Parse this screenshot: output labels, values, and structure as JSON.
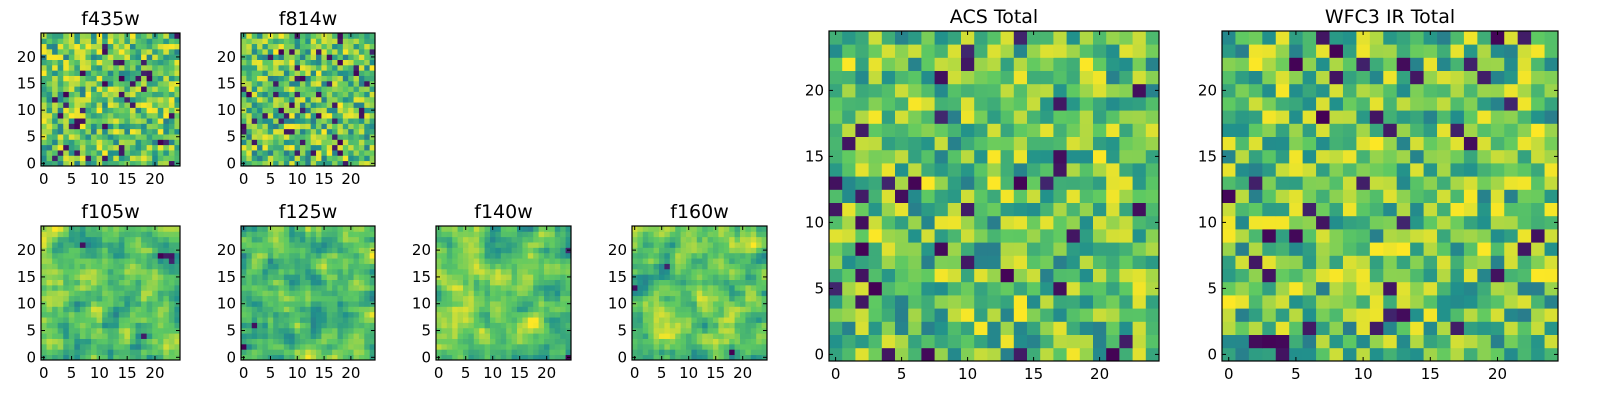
{
  "figure": {
    "background": "#ffffff"
  },
  "chart_data": [
    {
      "id": "f435w",
      "type": "heatmap",
      "title": "f435w",
      "seed": 11,
      "smooth": 0,
      "xticks": [
        0,
        5,
        10,
        15,
        20
      ],
      "yticks": [
        0,
        5,
        10,
        15,
        20
      ],
      "xlim": [
        -0.5,
        24.5
      ],
      "ylim": [
        -0.5,
        24.5
      ],
      "grid": false
    },
    {
      "id": "f814w",
      "type": "heatmap",
      "title": "f814w",
      "seed": 23,
      "smooth": 0,
      "xticks": [
        0,
        5,
        10,
        15,
        20
      ],
      "yticks": [
        0,
        5,
        10,
        15,
        20
      ],
      "xlim": [
        -0.5,
        24.5
      ],
      "ylim": [
        -0.5,
        24.5
      ],
      "grid": false
    },
    {
      "id": "f105w",
      "type": "heatmap",
      "title": "f105w",
      "seed": 37,
      "smooth": 1,
      "xticks": [
        0,
        5,
        10,
        15,
        20
      ],
      "yticks": [
        0,
        5,
        10,
        15,
        20
      ],
      "xlim": [
        -0.5,
        24.5
      ],
      "ylim": [
        -0.5,
        24.5
      ],
      "grid": false
    },
    {
      "id": "f125w",
      "type": "heatmap",
      "title": "f125w",
      "seed": 41,
      "smooth": 1,
      "xticks": [
        0,
        5,
        10,
        15,
        20
      ],
      "yticks": [
        0,
        5,
        10,
        15,
        20
      ],
      "xlim": [
        -0.5,
        24.5
      ],
      "ylim": [
        -0.5,
        24.5
      ],
      "grid": false
    },
    {
      "id": "f140w",
      "type": "heatmap",
      "title": "f140w",
      "seed": 53,
      "smooth": 1,
      "xticks": [
        0,
        5,
        10,
        15,
        20
      ],
      "yticks": [
        0,
        5,
        10,
        15,
        20
      ],
      "xlim": [
        -0.5,
        24.5
      ],
      "ylim": [
        -0.5,
        24.5
      ],
      "grid": false
    },
    {
      "id": "f160w",
      "type": "heatmap",
      "title": "f160w",
      "seed": 67,
      "smooth": 1,
      "xticks": [
        0,
        5,
        10,
        15,
        20
      ],
      "yticks": [
        0,
        5,
        10,
        15,
        20
      ],
      "xlim": [
        -0.5,
        24.5
      ],
      "ylim": [
        -0.5,
        24.5
      ],
      "grid": false
    },
    {
      "id": "acs-total",
      "type": "heatmap",
      "title": "ACS Total",
      "seed": 79,
      "smooth": 0,
      "xticks": [
        0,
        5,
        10,
        15,
        20
      ],
      "yticks": [
        0,
        5,
        10,
        15,
        20
      ],
      "xlim": [
        -0.5,
        24.5
      ],
      "ylim": [
        -0.5,
        24.5
      ],
      "grid": false
    },
    {
      "id": "wfc3-ir-total",
      "type": "heatmap",
      "title": "WFC3 IR Total",
      "seed": 97,
      "smooth": 0,
      "xticks": [
        0,
        5,
        10,
        15,
        20
      ],
      "yticks": [
        0,
        5,
        10,
        15,
        20
      ],
      "xlim": [
        -0.5,
        24.5
      ],
      "ylim": [
        -0.5,
        24.5
      ],
      "grid": false
    }
  ],
  "colormap": [
    "#440154",
    "#3b528b",
    "#21918c",
    "#5ec962",
    "#fde725"
  ]
}
